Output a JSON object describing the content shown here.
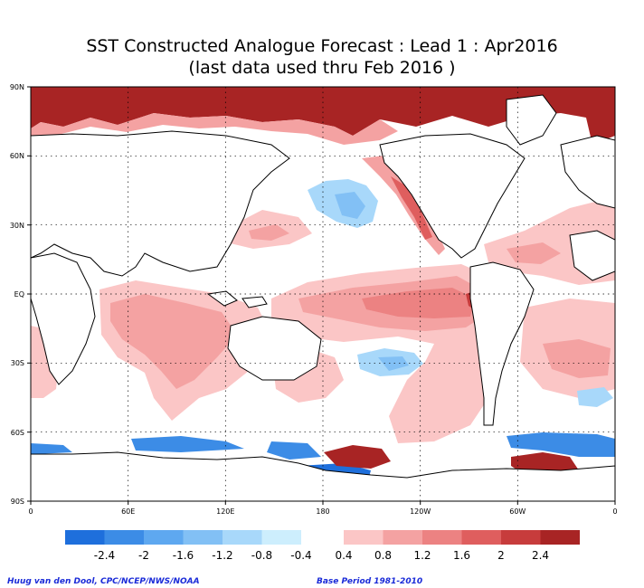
{
  "title": {
    "line1": "SST Constructed Analogue Forecast : Lead 1 : Apr2016",
    "line2": "(last data used thru Feb 2016 )"
  },
  "map": {
    "lat_labels": [
      "90N",
      "60N",
      "30N",
      "EQ",
      "30S",
      "60S",
      "90S"
    ],
    "lon_labels": [
      "0",
      "60E",
      "120E",
      "180",
      "120W",
      "60W",
      "0"
    ],
    "gridlines": "dotted",
    "projection": "equirectangular"
  },
  "legend": {
    "negative_labels": [
      "-2.4",
      "-2",
      "-1.6",
      "-1.2",
      "-0.8",
      "-0.4"
    ],
    "positive_labels": [
      "0.4",
      "0.8",
      "1.2",
      "1.6",
      "2",
      "2.4"
    ],
    "negative_colors": [
      "#1e6fdc",
      "#3c8ce6",
      "#5ea8f0",
      "#82c0f5",
      "#a8d8fa",
      "#cdeefd"
    ],
    "positive_colors": [
      "#fbc6c6",
      "#f4a2a2",
      "#ec8282",
      "#df5e5e",
      "#c73c3c",
      "#a82424"
    ]
  },
  "credits": {
    "left": "Huug van den Dool, CPC/NCEP/NWS/NOAA",
    "right": "Base Period 1981-2010"
  }
}
